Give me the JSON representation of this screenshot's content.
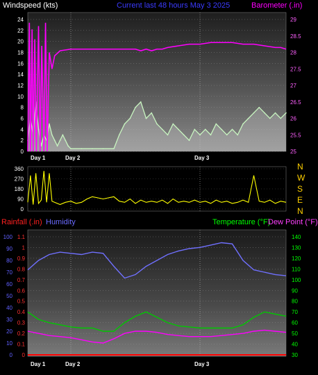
{
  "header": {
    "wind_label": "Windspeed (kts)",
    "center_label": "Current last 48 hours May 3 2025",
    "baro_label": "Barometer (.in)"
  },
  "bottom_header": {
    "rain_label": "Rainfall (.in)",
    "humidity_label": "Humidity",
    "temp_label": "Temperature (°F)",
    "dew_label": "Dew Point (°F)"
  },
  "direction_letters": [
    "N",
    "W",
    "S",
    "E",
    "N"
  ],
  "colors": {
    "wind": "#c8f5c0",
    "wind_fill": "#e8e8e8",
    "baro": "#ff00ff",
    "direction": "#ffff00",
    "humidity": "#7070ff",
    "temp": "#00c800",
    "dew": "#ff00ff",
    "rain": "#ff0000",
    "temp_axis": "#00ff00",
    "humidity_axis": "#6060ff"
  },
  "chart_data": [
    {
      "type": "line",
      "title": "Current last 48 hours May 3 2025",
      "ylabel": "Windspeed (kts)",
      "y2label": "Barometer (.in)",
      "ylim": [
        0,
        24
      ],
      "y_ticks": [
        0,
        2,
        4,
        6,
        8,
        10,
        12,
        14,
        16,
        18,
        20,
        22,
        24
      ],
      "y2lim": [
        25.0,
        29.0
      ],
      "y2_ticks": [
        "25",
        "25.5",
        "26",
        "26.5",
        "27",
        "27.5",
        "28",
        "28.5",
        "29"
      ],
      "x_ticks": [
        "Day 1",
        "Day 2",
        "Day 3"
      ],
      "xlim": [
        0,
        48
      ],
      "day_positions": [
        0,
        8,
        32
      ],
      "series": [
        {
          "name": "Windspeed (kts)",
          "axis": "left",
          "x": [
            0,
            0.5,
            1,
            1.5,
            2,
            2.5,
            3,
            3.5,
            4,
            4.5,
            5,
            5.5,
            6,
            6.5,
            7,
            7.5,
            8,
            10,
            12,
            14,
            16,
            17,
            18,
            19,
            20,
            21,
            22,
            23,
            24,
            25,
            26,
            27,
            28,
            29,
            30,
            31,
            32,
            33,
            34,
            35,
            36,
            37,
            38,
            39,
            40,
            41,
            42,
            43,
            44,
            45,
            46,
            47,
            48
          ],
          "values": [
            2,
            6,
            3,
            9,
            4,
            1,
            3,
            2,
            5,
            3,
            2,
            1,
            2,
            3,
            2,
            1,
            0.5,
            0.5,
            0.5,
            0.5,
            0.5,
            3,
            5,
            6,
            8,
            9,
            6,
            7,
            5,
            4,
            3,
            5,
            4,
            3,
            2,
            4,
            3,
            4,
            3,
            5,
            4,
            3,
            4,
            3,
            5,
            6,
            7,
            8,
            7,
            6,
            7,
            6,
            7
          ]
        },
        {
          "name": "Barometer (.in)",
          "axis": "right",
          "x": [
            0,
            0.3,
            0.5,
            0.8,
            1,
            1.3,
            1.6,
            2,
            2.3,
            2.6,
            3,
            3.3,
            3.6,
            4,
            4.5,
            5,
            6,
            8,
            10,
            12,
            14,
            16,
            18,
            20,
            21,
            22,
            23,
            24,
            25,
            26,
            28,
            30,
            32,
            34,
            36,
            38,
            40,
            42,
            44,
            46,
            47,
            48
          ],
          "values": [
            25.0,
            28.9,
            25.0,
            28.7,
            25.0,
            28.4,
            25.0,
            28.8,
            25.0,
            28.2,
            25.0,
            28.9,
            25.0,
            28.0,
            27.5,
            27.9,
            28.05,
            28.1,
            28.1,
            28.1,
            28.1,
            28.1,
            28.1,
            28.1,
            28.05,
            28.1,
            28.05,
            28.1,
            28.1,
            28.15,
            28.2,
            28.25,
            28.25,
            28.3,
            28.3,
            28.3,
            28.25,
            28.25,
            28.2,
            28.15,
            28.15,
            28.1
          ]
        }
      ]
    },
    {
      "type": "line",
      "ylabel": "Wind direction",
      "ylim": [
        0,
        360
      ],
      "y_ticks": [
        0,
        90,
        180,
        270,
        360
      ],
      "x_ticks": [
        "Day 1",
        "Day 2",
        "Day 3"
      ],
      "xlim": [
        0,
        48
      ],
      "series": [
        {
          "name": "Wind direction",
          "x": [
            0,
            0.5,
            1,
            1.5,
            2,
            2.5,
            3,
            3.5,
            4,
            4.5,
            5,
            6,
            7,
            8,
            9,
            10,
            11,
            12,
            13,
            14,
            15,
            16,
            17,
            18,
            19,
            20,
            21,
            22,
            23,
            24,
            25,
            26,
            27,
            28,
            29,
            30,
            31,
            32,
            33,
            34,
            35,
            36,
            37,
            38,
            39,
            40,
            41,
            42,
            43,
            44,
            45,
            46,
            47,
            48
          ],
          "values": [
            60,
            300,
            40,
            320,
            50,
            80,
            340,
            60,
            320,
            70,
            60,
            40,
            60,
            70,
            50,
            60,
            90,
            110,
            100,
            90,
            100,
            110,
            70,
            60,
            90,
            50,
            80,
            60,
            70,
            60,
            80,
            50,
            90,
            60,
            70,
            60,
            80,
            60,
            70,
            50,
            80,
            60,
            70,
            50,
            60,
            80,
            60,
            300,
            70,
            60,
            80,
            50,
            70,
            60
          ]
        }
      ]
    },
    {
      "type": "line",
      "ylabel": "Humidity",
      "y2label": "Temperature (°F)",
      "ylim": [
        0,
        100
      ],
      "y_ticks": [
        0,
        10,
        20,
        30,
        40,
        50,
        60,
        70,
        80,
        90,
        100
      ],
      "rain_lim": [
        0,
        1.1
      ],
      "rain_ticks": [
        "0",
        "0.1",
        "0.2",
        "0.3",
        "0.4",
        "0.5",
        "0.6",
        "0.7",
        "0.8",
        "0.9",
        "1",
        "1.1"
      ],
      "y2lim": [
        30,
        140
      ],
      "y2_ticks": [
        30,
        40,
        50,
        60,
        70,
        80,
        90,
        100,
        110,
        120,
        130,
        140
      ],
      "x_ticks": [
        "Day 1",
        "Day 2",
        "Day 3"
      ],
      "xlim": [
        0,
        48
      ],
      "series": [
        {
          "name": "Humidity",
          "axis": "humidity",
          "x": [
            0,
            2,
            4,
            6,
            8,
            10,
            12,
            14,
            16,
            18,
            20,
            22,
            24,
            26,
            28,
            30,
            32,
            34,
            36,
            38,
            40,
            42,
            44,
            46,
            48
          ],
          "values": [
            72,
            80,
            85,
            87,
            86,
            85,
            87,
            86,
            75,
            65,
            68,
            75,
            80,
            85,
            88,
            90,
            91,
            93,
            95,
            94,
            80,
            72,
            70,
            68,
            67
          ]
        },
        {
          "name": "Temperature (°F)",
          "axis": "temp",
          "x": [
            0,
            2,
            4,
            6,
            8,
            10,
            12,
            14,
            16,
            18,
            20,
            22,
            24,
            26,
            28,
            30,
            32,
            34,
            36,
            38,
            40,
            42,
            44,
            46,
            48
          ],
          "values": [
            70,
            63,
            60,
            58,
            56,
            55,
            55,
            52,
            52,
            60,
            66,
            70,
            65,
            60,
            57,
            56,
            55,
            55,
            55,
            55,
            58,
            65,
            70,
            68,
            66
          ]
        },
        {
          "name": "Dew Point (°F)",
          "axis": "temp",
          "x": [
            0,
            2,
            4,
            6,
            8,
            10,
            12,
            14,
            16,
            18,
            20,
            22,
            24,
            26,
            28,
            30,
            32,
            34,
            36,
            38,
            40,
            42,
            44,
            46,
            48
          ],
          "values": [
            52,
            50,
            48,
            47,
            46,
            44,
            42,
            41,
            45,
            50,
            52,
            52,
            51,
            49,
            48,
            47,
            47,
            47,
            48,
            49,
            50,
            52,
            53,
            52,
            51
          ]
        },
        {
          "name": "Rainfall (.in)",
          "axis": "rain",
          "x": [
            0,
            48
          ],
          "values": [
            0,
            0
          ]
        }
      ]
    }
  ]
}
